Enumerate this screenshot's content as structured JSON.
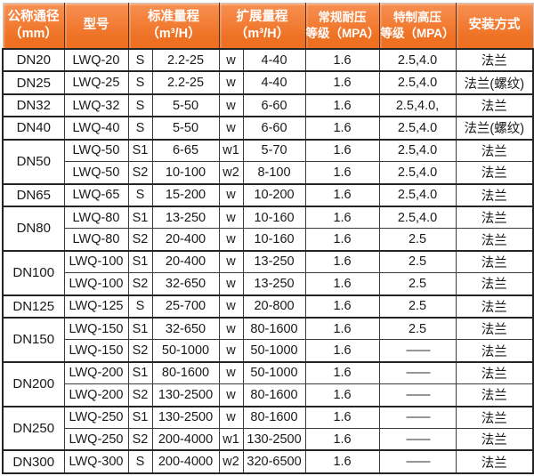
{
  "table": {
    "header": {
      "diameter": [
        "公称通径",
        "（mm）"
      ],
      "model": "型号",
      "std_range": [
        "标准量程",
        "（m³/H）"
      ],
      "ext_range": [
        "扩展量程",
        "（m³/H）"
      ],
      "normal_pressure": [
        "常规耐压",
        "等级（MPA）"
      ],
      "high_pressure": [
        "特制高压",
        "等级（MPA）"
      ],
      "mount": "安装方式"
    },
    "groups": [
      {
        "dn": "DN20",
        "rows": [
          {
            "model": "LWQ-20",
            "s": "S",
            "std": "2.2-25",
            "w": "w",
            "ext": "4-40",
            "pn": "1.6",
            "hp": "2.5,4.0",
            "mount": "法兰"
          }
        ]
      },
      {
        "dn": "DN25",
        "rows": [
          {
            "model": "LWQ-25",
            "s": "S",
            "std": "2.2-25",
            "w": "w",
            "ext": "4-40",
            "pn": "1.6",
            "hp": "2.5,4.0",
            "mount": "法兰(螺纹)"
          }
        ]
      },
      {
        "dn": "DN32",
        "rows": [
          {
            "model": "LWQ-32",
            "s": "S",
            "std": "5-50",
            "w": "w",
            "ext": "6-60",
            "pn": "1.6",
            "hp": "2.5,4.0,",
            "mount": "法兰"
          }
        ]
      },
      {
        "dn": "DN40",
        "rows": [
          {
            "model": "LWQ-40",
            "s": "S",
            "std": "5-50",
            "w": "w",
            "ext": "6-60",
            "pn": "1.6",
            "hp": "2.5,4.0",
            "mount": "法兰(螺纹)"
          }
        ]
      },
      {
        "dn": "DN50",
        "rows": [
          {
            "model": "LWQ-50",
            "s": "S1",
            "std": "6-65",
            "w": "w1",
            "ext": "5-70",
            "pn": "1.6",
            "hp": "2.5,4.0",
            "mount": "法兰"
          },
          {
            "model": "LWQ-50",
            "s": "S2",
            "std": "10-100",
            "w": "w2",
            "ext": "8-100",
            "pn": "1.6",
            "hp": "2.5,4.0",
            "mount": "法兰"
          }
        ]
      },
      {
        "dn": "DN65",
        "rows": [
          {
            "model": "LWQ-65",
            "s": "S",
            "std": "15-200",
            "w": "w",
            "ext": "10-200",
            "pn": "1.6",
            "hp": "2.5,4.0",
            "mount": "法兰"
          }
        ]
      },
      {
        "dn": "DN80",
        "rows": [
          {
            "model": "LWQ-80",
            "s": "S1",
            "std": "13-250",
            "w": "w",
            "ext": "10-160",
            "pn": "1.6",
            "hp": "2.5,4.0",
            "mount": "法兰"
          },
          {
            "model": "LWQ-80",
            "s": "S2",
            "std": "20-400",
            "w": "w",
            "ext": "10-160",
            "pn": "1.6",
            "hp": "2.5",
            "mount": "法兰"
          }
        ]
      },
      {
        "dn": "DN100",
        "rows": [
          {
            "model": "LWQ-100",
            "s": "S1",
            "std": "20-400",
            "w": "w",
            "ext": "13-250",
            "pn": "1.6",
            "hp": "2.5",
            "mount": "法兰"
          },
          {
            "model": "LWQ-100",
            "s": "S2",
            "std": "32-650",
            "w": "w",
            "ext": "13-250",
            "pn": "1.6",
            "hp": "2.5",
            "mount": "法兰"
          }
        ]
      },
      {
        "dn": "DN125",
        "rows": [
          {
            "model": "LWQ-125",
            "s": "S",
            "std": "25-700",
            "w": "w",
            "ext": "20-800",
            "pn": "1.6",
            "hp": "2.5",
            "mount": "法兰"
          }
        ]
      },
      {
        "dn": "DN150",
        "rows": [
          {
            "model": "LWQ-150",
            "s": "S1",
            "std": "32-650",
            "w": "w",
            "ext": "80-1600",
            "pn": "1.6",
            "hp": "2.5",
            "mount": "法兰"
          },
          {
            "model": "LWQ-150",
            "s": "S2",
            "std": "50-1000",
            "w": "w",
            "ext": "50-1000",
            "pn": "1.6",
            "hp": "——",
            "mount": "法兰"
          }
        ]
      },
      {
        "dn": "DN200",
        "rows": [
          {
            "model": "LWQ-200",
            "s": "S1",
            "std": "80-1600",
            "w": "w",
            "ext": "50-1000",
            "pn": "1.6",
            "hp": "——",
            "mount": "法兰"
          },
          {
            "model": "LWQ-200",
            "s": "S2",
            "std": "130-2500",
            "w": "w",
            "ext": "80-1600",
            "pn": "1.6",
            "hp": "——",
            "mount": "法兰"
          }
        ]
      },
      {
        "dn": "DN250",
        "rows": [
          {
            "model": "LWQ-250",
            "s": "S1",
            "std": "130-2500",
            "w": "w",
            "ext": "80-1600",
            "pn": "1.6",
            "hp": "——",
            "mount": "法兰"
          },
          {
            "model": "LWQ-250",
            "s": "S2",
            "std": "200-4000",
            "w": "w1",
            "ext": "130-2500",
            "pn": "1.6",
            "hp": "——",
            "mount": "法兰"
          }
        ]
      },
      {
        "dn": "DN300",
        "rows": [
          {
            "model": "LWQ-300",
            "s": "S",
            "std": "200-4000",
            "w": "w2",
            "ext": "320-6500",
            "pn": "1.6",
            "hp": "——",
            "mount": "法兰"
          }
        ]
      }
    ],
    "colors": {
      "header_bg": "#ee7123",
      "header_bg_top": "#f88f52",
      "header_text": "#ffffff",
      "border_dark": "#242424",
      "border_mid": "#3c3c3c",
      "border_light": "#8e8e8e",
      "body_bg": "#ffffff",
      "body_text": "#191919"
    }
  }
}
